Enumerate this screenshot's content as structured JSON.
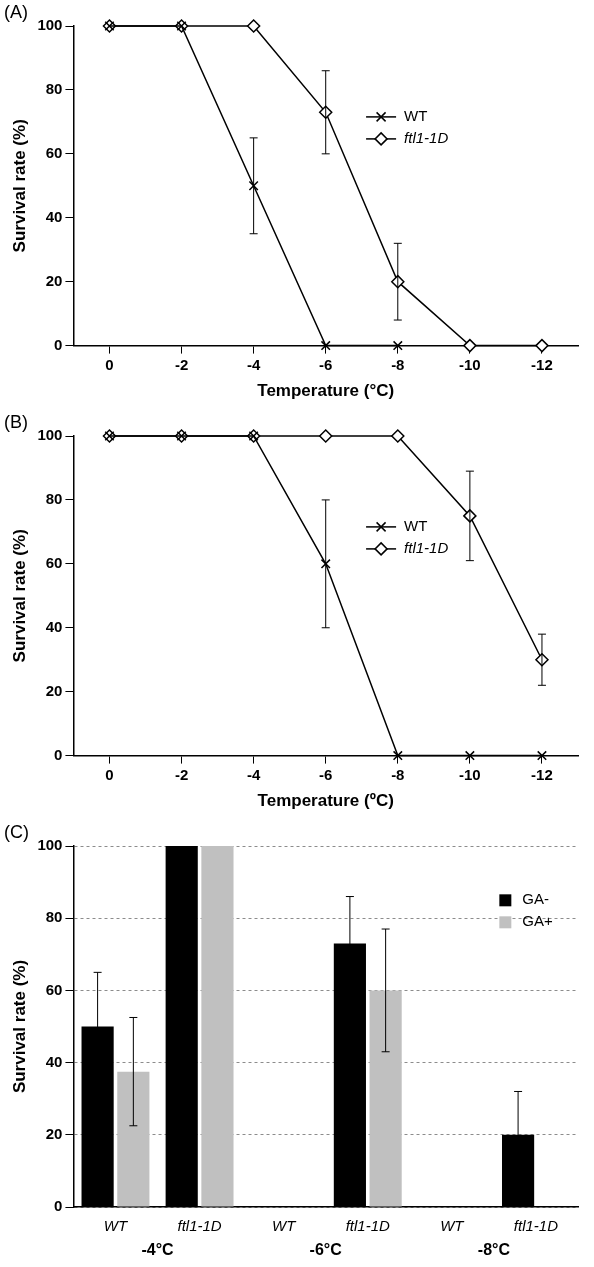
{
  "chart_data": [
    {
      "type": "line",
      "title": "(A)",
      "xlabel": "Temperature (°C)",
      "ylabel": "Survival rate (%)",
      "x": [
        0,
        -2,
        -4,
        -6,
        -8,
        -10,
        -12
      ],
      "series": [
        {
          "name": "WT",
          "color": "#000000",
          "marker": "x",
          "values": [
            100,
            100,
            50,
            0,
            0,
            null,
            null
          ],
          "errors": [
            null,
            null,
            15,
            null,
            null,
            null,
            null
          ]
        },
        {
          "name": "ftl1-1D",
          "color": "#000000",
          "marker": "diamond",
          "values": [
            100,
            100,
            100,
            73,
            20,
            0,
            0
          ],
          "errors": [
            null,
            null,
            null,
            13,
            12,
            null,
            null
          ]
        }
      ],
      "xlim": [
        1,
        -13
      ],
      "xticks": [
        0,
        -2,
        -4,
        -6,
        -8,
        -10,
        -12
      ],
      "ylim": [
        0,
        100
      ],
      "yticks": [
        0,
        20,
        40,
        60,
        80,
        100
      ],
      "grid": false,
      "legend": "right"
    },
    {
      "type": "line",
      "title": "(B)",
      "xlabel": "Temperature (ºC)",
      "ylabel": "Survival rate (%)",
      "x": [
        0,
        -2,
        -4,
        -6,
        -8,
        -10,
        -12
      ],
      "series": [
        {
          "name": "WT",
          "color": "#000000",
          "marker": "x",
          "values": [
            100,
            100,
            100,
            60,
            0,
            0,
            0
          ],
          "errors": [
            null,
            null,
            null,
            20,
            null,
            null,
            null
          ]
        },
        {
          "name": "ftl1-1D",
          "color": "#000000",
          "marker": "diamond",
          "values": [
            100,
            100,
            100,
            100,
            100,
            75,
            30
          ],
          "errors": [
            null,
            null,
            null,
            null,
            null,
            14,
            8
          ]
        }
      ],
      "xlim": [
        1,
        -13
      ],
      "xticks": [
        0,
        -2,
        -4,
        -6,
        -8,
        -10,
        -12
      ],
      "ylim": [
        0,
        100
      ],
      "yticks": [
        0,
        20,
        40,
        60,
        80,
        100
      ],
      "grid": false,
      "legend": "right"
    },
    {
      "type": "bar",
      "title": "(C)",
      "ylabel": "Survival rate (%)",
      "categories": [
        "WT",
        "ftl1-1D",
        "WT",
        "ftl1-1D",
        "WT",
        "ftl1-1D"
      ],
      "groups": [
        "-4°C",
        "-6°C",
        "-8°C"
      ],
      "series": [
        {
          "name": "GA-",
          "color": "#000000",
          "values": [
            50,
            100,
            0,
            73,
            0,
            20
          ],
          "errors": [
            15,
            null,
            null,
            13,
            null,
            12
          ]
        },
        {
          "name": "GA+",
          "color": "#c0c0c0",
          "values": [
            37.5,
            100,
            0,
            60,
            0,
            0
          ],
          "errors": [
            15,
            null,
            null,
            17,
            null,
            null
          ]
        }
      ],
      "ylim": [
        0,
        100
      ],
      "yticks": [
        0,
        20,
        40,
        60,
        80,
        100
      ],
      "grid": true,
      "legend": "upper right"
    }
  ]
}
